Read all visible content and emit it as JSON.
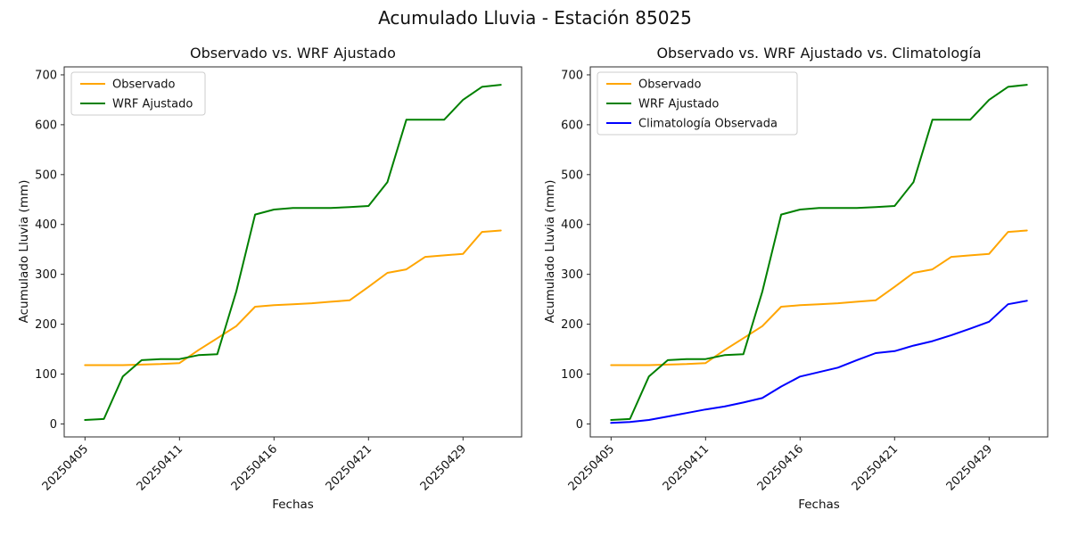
{
  "figure": {
    "suptitle": "Acumulado Lluvia - Estación 85025",
    "background": "#ffffff",
    "text_color": "#111111",
    "spine_color": "#2b2b2b"
  },
  "chart_data": [
    {
      "type": "line",
      "title": "Observado vs. WRF Ajustado",
      "xlabel": "Fechas",
      "ylabel": "Acumulado Lluvia (mm)",
      "grid": false,
      "legend_position": "upper-left",
      "ylim": [
        -26,
        716
      ],
      "yticks": [
        0,
        100,
        200,
        300,
        400,
        500,
        600,
        700
      ],
      "n_points": 23,
      "x_tick_positions": [
        0,
        5,
        10,
        15,
        20
      ],
      "x_tick_labels": [
        "20250405",
        "20250411",
        "20250416",
        "20250421",
        "20250429"
      ],
      "series": [
        {
          "name": "Observado",
          "color": "#ffa500",
          "values": [
            118,
            118,
            118,
            119,
            120,
            122,
            148,
            172,
            196,
            235,
            238,
            240,
            242,
            245,
            248,
            275,
            303,
            310,
            335,
            338,
            341,
            385,
            388
          ]
        },
        {
          "name": "WRF Ajustado",
          "color": "#008000",
          "values": [
            8,
            10,
            95,
            128,
            130,
            130,
            138,
            140,
            265,
            420,
            430,
            433,
            433,
            433,
            435,
            437,
            485,
            610,
            610,
            610,
            650,
            676,
            680
          ]
        }
      ]
    },
    {
      "type": "line",
      "title": "Observado vs. WRF Ajustado vs. Climatología",
      "xlabel": "Fechas",
      "ylabel": "Acumulado Lluvia (mm)",
      "grid": false,
      "legend_position": "upper-left",
      "ylim": [
        -26,
        716
      ],
      "yticks": [
        0,
        100,
        200,
        300,
        400,
        500,
        600,
        700
      ],
      "n_points": 23,
      "x_tick_positions": [
        0,
        5,
        10,
        15,
        20
      ],
      "x_tick_labels": [
        "20250405",
        "20250411",
        "20250416",
        "20250421",
        "20250429"
      ],
      "series": [
        {
          "name": "Observado",
          "color": "#ffa500",
          "values": [
            118,
            118,
            118,
            119,
            120,
            122,
            148,
            172,
            196,
            235,
            238,
            240,
            242,
            245,
            248,
            275,
            303,
            310,
            335,
            338,
            341,
            385,
            388
          ]
        },
        {
          "name": "WRF Ajustado",
          "color": "#008000",
          "values": [
            8,
            10,
            95,
            128,
            130,
            130,
            138,
            140,
            265,
            420,
            430,
            433,
            433,
            433,
            435,
            437,
            485,
            610,
            610,
            610,
            650,
            676,
            680
          ]
        },
        {
          "name": "Climatología Observada",
          "color": "#0000ff",
          "values": [
            2,
            4,
            8,
            15,
            22,
            29,
            35,
            43,
            52,
            75,
            95,
            104,
            113,
            128,
            142,
            146,
            157,
            166,
            178,
            191,
            205,
            240,
            247
          ]
        }
      ]
    }
  ]
}
